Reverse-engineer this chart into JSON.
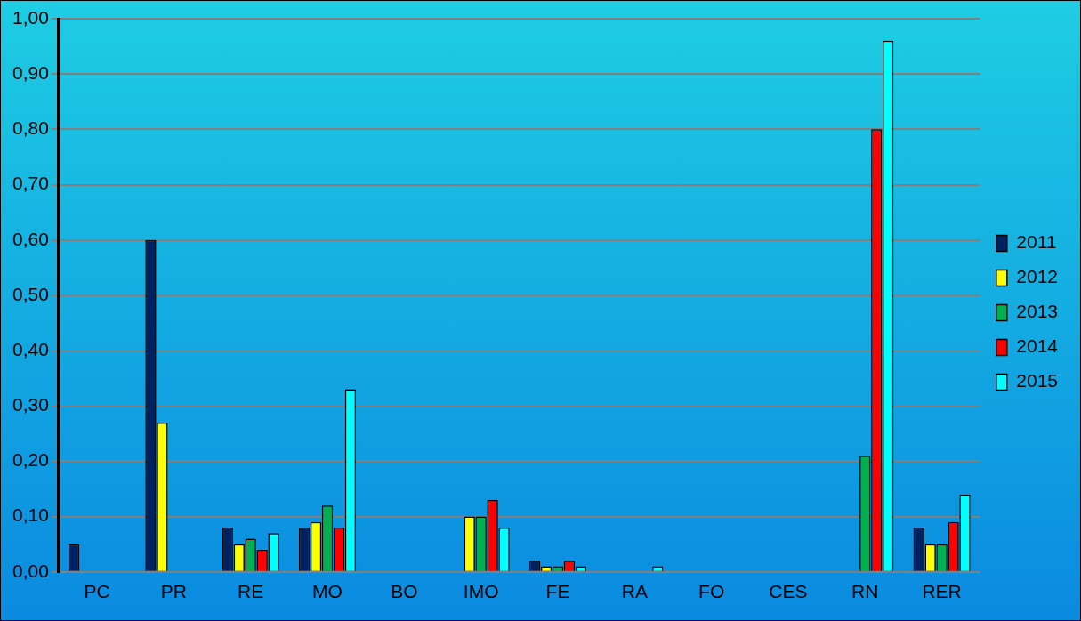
{
  "chart_data": {
    "type": "bar",
    "categories": [
      "PC",
      "PR",
      "RE",
      "MO",
      "BO",
      "IMO",
      "FE",
      "RA",
      "FO",
      "CES",
      "RN",
      "RER"
    ],
    "series": [
      {
        "name": "2011",
        "color": "#002060",
        "values": [
          0.05,
          0.6,
          0.08,
          0.08,
          0,
          0,
          0.02,
          0,
          0,
          0,
          0,
          0.08
        ]
      },
      {
        "name": "2012",
        "color": "#ffff00",
        "values": [
          0,
          0.27,
          0.05,
          0.09,
          0,
          0.1,
          0.01,
          0,
          0,
          0,
          0,
          0.05
        ]
      },
      {
        "name": "2013",
        "color": "#00b050",
        "values": [
          0,
          0,
          0.06,
          0.12,
          0,
          0.1,
          0.01,
          0,
          0,
          0,
          0.21,
          0.05
        ]
      },
      {
        "name": "2014",
        "color": "#ff0000",
        "values": [
          0,
          0,
          0.04,
          0.08,
          0,
          0.13,
          0.02,
          0,
          0,
          0,
          0.8,
          0.09
        ]
      },
      {
        "name": "2015",
        "color": "#00ffff",
        "values": [
          0,
          0,
          0.07,
          0.33,
          0,
          0.08,
          0.01,
          0.01,
          0,
          0,
          0.96,
          0.14
        ]
      }
    ],
    "ylim": [
      0,
      1
    ],
    "yticks": [
      {
        "value": 0,
        "label": "0,00"
      },
      {
        "value": 0.1,
        "label": "0,10"
      },
      {
        "value": 0.2,
        "label": "0,20"
      },
      {
        "value": 0.3,
        "label": "0,30"
      },
      {
        "value": 0.4,
        "label": "0,40"
      },
      {
        "value": 0.5,
        "label": "0,50"
      },
      {
        "value": 0.6,
        "label": "0,60"
      },
      {
        "value": 0.7,
        "label": "0,70"
      },
      {
        "value": 0.8,
        "label": "0,80"
      },
      {
        "value": 0.9,
        "label": "0,90"
      },
      {
        "value": 1,
        "label": "1,00"
      }
    ],
    "grid": "y",
    "legend": "right"
  }
}
